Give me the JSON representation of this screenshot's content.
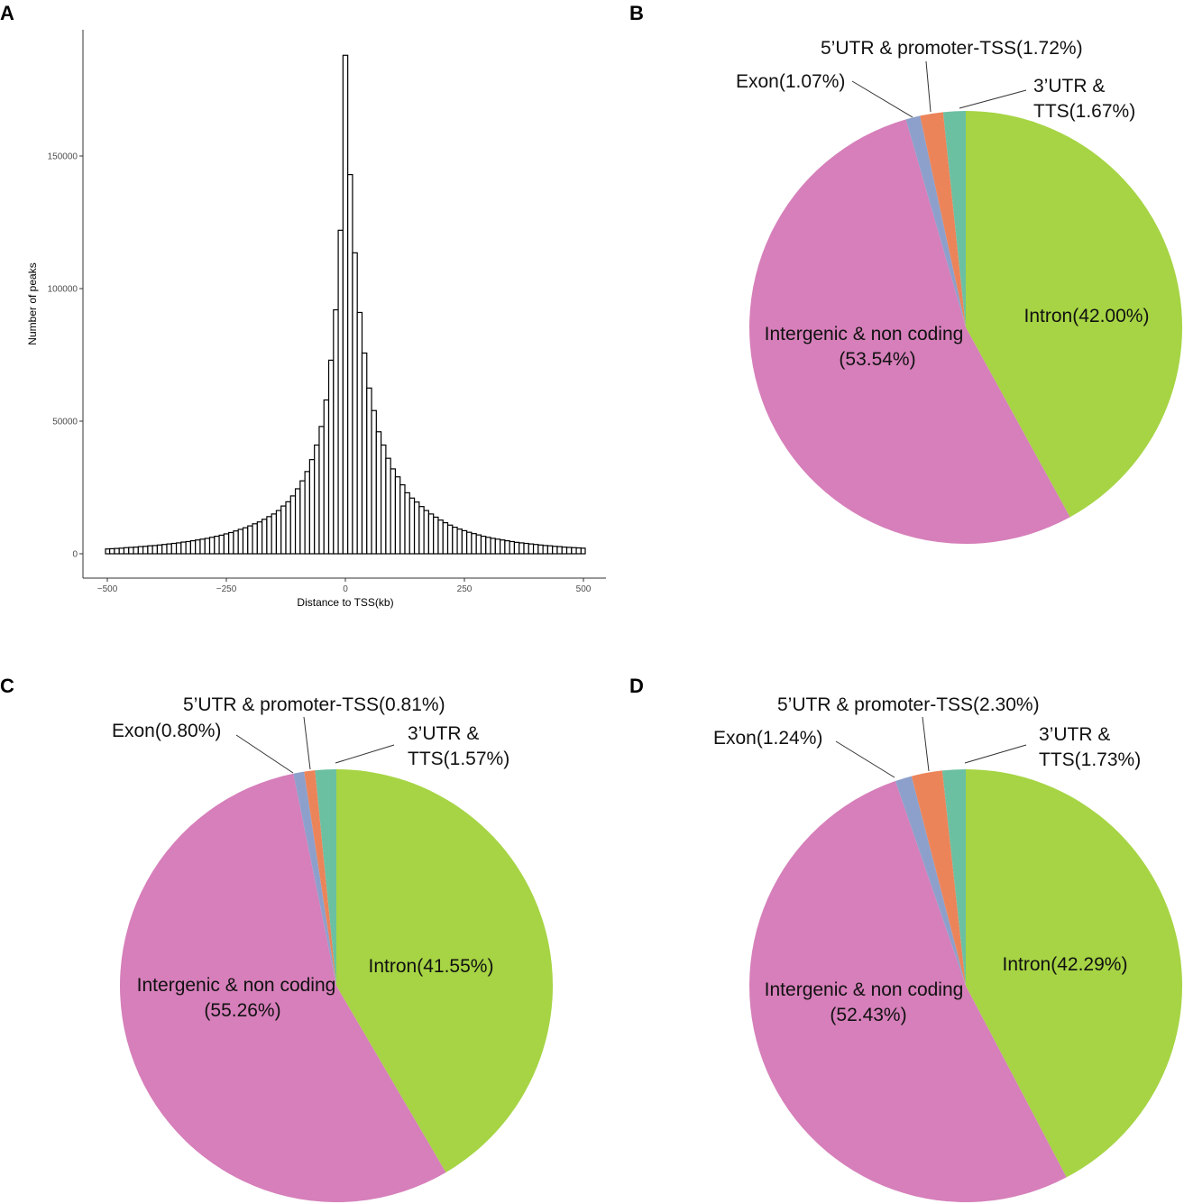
{
  "panels": [
    "A",
    "B",
    "C",
    "D"
  ],
  "chart_data": [
    {
      "type": "bar",
      "panel": "A",
      "title": "",
      "xlabel": "Distance to TSS(kb)",
      "ylabel": "Number of peaks",
      "xlim": [
        -500,
        500
      ],
      "ylim": [
        0,
        190000
      ],
      "xticks": [
        "-500",
        "-250",
        "0",
        "250",
        "500"
      ],
      "xtick_values": [
        -500,
        -250,
        0,
        250,
        500
      ],
      "yticks": [
        "0",
        "50000",
        "100000",
        "150000"
      ],
      "ytick_values": [
        0,
        50000,
        100000,
        150000
      ],
      "bin_width": 10,
      "x": [
        -500,
        -490,
        -480,
        -470,
        -460,
        -450,
        -440,
        -430,
        -420,
        -410,
        -400,
        -390,
        -380,
        -370,
        -360,
        -350,
        -340,
        -330,
        -320,
        -310,
        -300,
        -290,
        -280,
        -270,
        -260,
        -250,
        -240,
        -230,
        -220,
        -210,
        -200,
        -190,
        -180,
        -170,
        -160,
        -150,
        -140,
        -130,
        -120,
        -110,
        -100,
        -90,
        -80,
        -70,
        -60,
        -50,
        -40,
        -30,
        -20,
        -10,
        0,
        10,
        20,
        30,
        40,
        50,
        60,
        70,
        80,
        90,
        100,
        110,
        120,
        130,
        140,
        150,
        160,
        170,
        180,
        190,
        200,
        210,
        220,
        230,
        240,
        250,
        260,
        270,
        280,
        290,
        300,
        310,
        320,
        330,
        340,
        350,
        360,
        370,
        380,
        390,
        400,
        410,
        420,
        430,
        440,
        450,
        460,
        470,
        480,
        490,
        500
      ],
      "values": [
        1800,
        1900,
        2000,
        2100,
        2300,
        2400,
        2500,
        2700,
        2800,
        3000,
        3100,
        3300,
        3500,
        3700,
        3900,
        4100,
        4400,
        4600,
        4900,
        5200,
        5500,
        5800,
        6200,
        6600,
        7000,
        7500,
        8000,
        8600,
        9200,
        9800,
        10500,
        11300,
        12000,
        13000,
        14000,
        15000,
        16300,
        18000,
        19600,
        21800,
        24500,
        27500,
        31000,
        35500,
        41000,
        48000,
        58000,
        73000,
        92000,
        122000,
        188000,
        143000,
        113500,
        91000,
        75700,
        62500,
        54000,
        46000,
        41000,
        36000,
        32000,
        29000,
        26000,
        23000,
        21000,
        19500,
        17800,
        16300,
        15000,
        13800,
        12700,
        11700,
        10800,
        10000,
        9300,
        8700,
        8100,
        7600,
        7100,
        6600,
        6200,
        5800,
        5500,
        5200,
        4900,
        4600,
        4300,
        4100,
        3900,
        3700,
        3500,
        3300,
        3100,
        3000,
        2800,
        2700,
        2500,
        2400,
        2300,
        2200,
        2100
      ]
    },
    {
      "type": "pie",
      "panel": "B",
      "slices": [
        {
          "name": "Intron",
          "value": 42.0,
          "label": [
            "Intron(42.00%)"
          ],
          "color": "#a6d444"
        },
        {
          "name": "Intergenic & non coding",
          "value": 53.54,
          "label": [
            "Intergenic & non coding",
            "(53.54%)"
          ],
          "color": "#d67fba"
        },
        {
          "name": "Exon",
          "value": 1.07,
          "label": [
            "Exon(1.07%)"
          ],
          "color": "#8da0cb"
        },
        {
          "name": "5’UTR & promoter-TSS",
          "value": 1.72,
          "label": [
            "5’UTR & promoter-TSS(1.72%)"
          ],
          "color": "#ec845a"
        },
        {
          "name": "3’UTR & TTS",
          "value": 1.67,
          "label": [
            "3’UTR &",
            "TTS(1.67%)"
          ],
          "color": "#6cc0a2"
        }
      ]
    },
    {
      "type": "pie",
      "panel": "C",
      "slices": [
        {
          "name": "Intron",
          "value": 41.55,
          "label": [
            "Intron(41.55%)"
          ],
          "color": "#a6d444"
        },
        {
          "name": "Intergenic & non coding",
          "value": 55.26,
          "label": [
            "Intergenic & non coding",
            "(55.26%)"
          ],
          "color": "#d67fba"
        },
        {
          "name": "Exon",
          "value": 0.8,
          "label": [
            "Exon(0.80%)"
          ],
          "color": "#8da0cb"
        },
        {
          "name": "5’UTR & promoter-TSS",
          "value": 0.81,
          "label": [
            "5’UTR & promoter-TSS(0.81%)"
          ],
          "color": "#ec845a"
        },
        {
          "name": "3’UTR & TTS",
          "value": 1.57,
          "label": [
            "3’UTR &",
            "TTS(1.57%)"
          ],
          "color": "#6cc0a2"
        }
      ]
    },
    {
      "type": "pie",
      "panel": "D",
      "slices": [
        {
          "name": "Intron",
          "value": 42.29,
          "label": [
            "Intron(42.29%)"
          ],
          "color": "#a6d444"
        },
        {
          "name": "Intergenic & non coding",
          "value": 52.43,
          "label": [
            "Intergenic & non coding",
            "(52.43%)"
          ],
          "color": "#d67fba"
        },
        {
          "name": "Exon",
          "value": 1.24,
          "label": [
            "Exon(1.24%)"
          ],
          "color": "#8da0cb"
        },
        {
          "name": "5’UTR & promoter-TSS",
          "value": 2.3,
          "label": [
            "5’UTR & promoter-TSS(2.30%)"
          ],
          "color": "#ec845a"
        },
        {
          "name": "3’UTR & TTS",
          "value": 1.73,
          "label": [
            "3’UTR &",
            "TTS(1.73%)"
          ],
          "color": "#6cc0a2"
        }
      ]
    }
  ]
}
